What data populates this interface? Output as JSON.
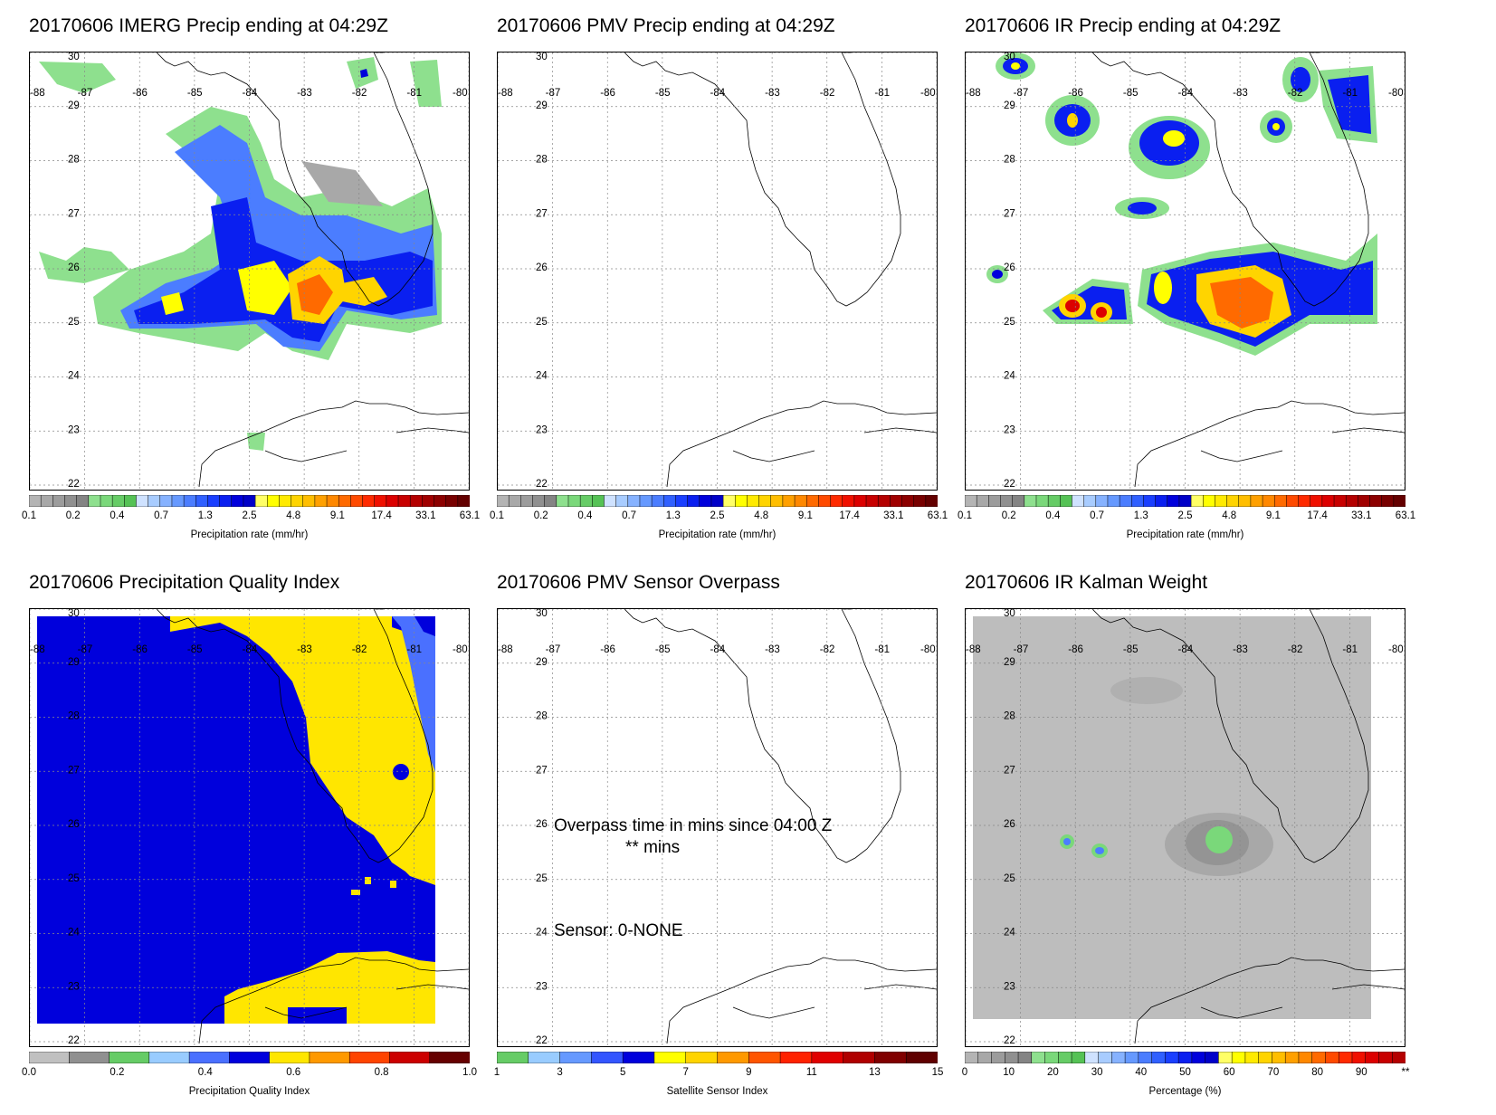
{
  "lat_labels": [
    "30",
    "29",
    "28",
    "27",
    "26",
    "25",
    "24",
    "23",
    "22"
  ],
  "lon_labels": [
    "-88",
    "-87",
    "-86",
    "-85",
    "-84",
    "-83",
    "-82",
    "-81",
    "-80"
  ],
  "panels": [
    {
      "id": "p1",
      "title": "20170606 IMERG Precip ending at 04:29Z",
      "colorbar": "precip",
      "colorbar_title": "Precipitation rate (mm/hr)"
    },
    {
      "id": "p2",
      "title": "20170606 PMV Precip ending at 04:29Z",
      "colorbar": "precip",
      "colorbar_title": "Precipitation rate (mm/hr)"
    },
    {
      "id": "p3",
      "title": "20170606 IR Precip ending at 04:29Z",
      "colorbar": "precip",
      "colorbar_title": "Precipitation rate (mm/hr)"
    },
    {
      "id": "p4",
      "title": "20170606 Precipitation Quality Index",
      "colorbar": "pqi",
      "colorbar_title": "Precipitation Quality Index"
    },
    {
      "id": "p5",
      "title": "20170606 PMV Sensor Overpass",
      "colorbar": "sensor",
      "colorbar_title": "Satellite Sensor Index"
    },
    {
      "id": "p6",
      "title": "20170606 IR Kalman Weight",
      "colorbar": "percent",
      "colorbar_title": "Percentage (%)"
    }
  ],
  "colorbars": {
    "precip": {
      "tick_labels": [
        "0.1",
        "0.2",
        "0.4",
        "0.7",
        "1.3",
        "2.5",
        "4.8",
        "9.1",
        "17.4",
        "33.1",
        "63.1"
      ],
      "colors": [
        "#b4b4b4",
        "#a8a8a8",
        "#9c9c9c",
        "#909090",
        "#848484",
        "#8ee08e",
        "#7ad87a",
        "#66cc66",
        "#55c255",
        "#cfe2ff",
        "#a8ccff",
        "#86b2ff",
        "#6699ff",
        "#4b7dff",
        "#3060ff",
        "#1a3fff",
        "#0a1ff0",
        "#0000dc",
        "#0000c8",
        "#ffff66",
        "#ffff00",
        "#ffea00",
        "#ffd400",
        "#ffbe00",
        "#ffa000",
        "#ff8800",
        "#ff6a00",
        "#ff4a00",
        "#ff2a00",
        "#f01000",
        "#dc0000",
        "#c80000",
        "#b40000",
        "#a00000",
        "#8c0000",
        "#780000",
        "#640000"
      ]
    },
    "pqi": {
      "tick_labels": [
        "0.0",
        "0.2",
        "0.4",
        "0.6",
        "0.8",
        "1.0"
      ],
      "colors": [
        "#c0c0c0",
        "#909090",
        "#66cc66",
        "#99ccff",
        "#4a70ff",
        "#0000dc",
        "#ffe600",
        "#ff9900",
        "#ff4400",
        "#cc0000",
        "#660000"
      ]
    },
    "sensor": {
      "tick_labels": [
        "1",
        "3",
        "5",
        "7",
        "9",
        "11",
        "13",
        "15"
      ],
      "colors": [
        "#66cc66",
        "#99ccff",
        "#6699ff",
        "#3355ff",
        "#0000dc",
        "#ffff00",
        "#ffd400",
        "#ff9900",
        "#ff5500",
        "#ff2200",
        "#e00000",
        "#b00000",
        "#800000",
        "#600000"
      ]
    },
    "percent": {
      "tick_labels": [
        "0",
        "10",
        "20",
        "30",
        "40",
        "50",
        "60",
        "70",
        "80",
        "90",
        "**"
      ],
      "colors": [
        "#b4b4b4",
        "#a8a8a8",
        "#9c9c9c",
        "#909090",
        "#848484",
        "#8ee08e",
        "#7ad87a",
        "#66cc66",
        "#55c255",
        "#cfe2ff",
        "#a8ccff",
        "#86b2ff",
        "#6699ff",
        "#4b7dff",
        "#3060ff",
        "#1a3fff",
        "#0a1ff0",
        "#0000dc",
        "#0000c8",
        "#ffff66",
        "#ffff00",
        "#ffea00",
        "#ffd400",
        "#ffbe00",
        "#ffa000",
        "#ff8800",
        "#ff6a00",
        "#ff4a00",
        "#ff2a00",
        "#f01000",
        "#dc0000",
        "#c80000",
        "#b40000"
      ]
    }
  },
  "overpass": {
    "line1": "Overpass time in mins since 04:00 Z",
    "line2": "** mins",
    "sensor": "Sensor:   0-NONE"
  }
}
